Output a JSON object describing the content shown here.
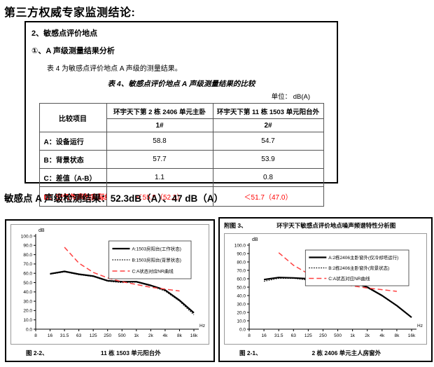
{
  "page": {
    "title": "第三方权威专家监测结论:"
  },
  "colors": {
    "accent_red": "#ff0000",
    "line_black": "#000000",
    "nr_curve_red": "#ff4040",
    "chart_frame_gray": "#999999"
  },
  "report_box": {
    "section_heading": "2、敏感点评价地点",
    "sub_heading": "①、A 声级测量结果分析",
    "intro_text": "表 4 为敏感点评价地点 A 声级的测量结果。",
    "table_title": "表 4、敏感点评价地点 A 声级测量结果的比较",
    "unit_label": "单位：  dB(A)",
    "table": {
      "corner_header": "比较项目",
      "col_groups": [
        "环宇天下第 2 栋 2406 单元主卧",
        "环宇天下第 11 栋 1503 单元阳台外"
      ],
      "sub_headers": [
        "1#",
        "2#"
      ],
      "rows": [
        {
          "label": "A：设备运行",
          "values": [
            "58.8",
            "54.7"
          ],
          "red": false
        },
        {
          "label": "B：背景状态",
          "values": [
            "57.7",
            "53.9"
          ],
          "red": false
        },
        {
          "label": "C：差值（A-B）",
          "values": [
            "1.1",
            "0.8"
          ],
          "red": false
        },
        {
          "label": "D：空气传声的实际结果",
          "values": [
            "＜55.8（52.3）",
            "＜51.7（47.0）"
          ],
          "red": true
        }
      ]
    }
  },
  "result_line": "敏感点 A 声级检测结果：52.3dB（A）、47 dB（A）",
  "chart_data": [
    {
      "type": "line",
      "position": "left",
      "figure_label": "图 2-2、",
      "figure_caption": "11 栋 1503 单元阳台外",
      "y_axis_unit": "dB",
      "x_axis_unit": "Hz",
      "ylim": [
        0,
        100
      ],
      "yticks": [
        "100.0",
        "90.0",
        "80.0",
        "70.0",
        "60.0",
        "50.0",
        "40.0",
        "30.0",
        "20.0",
        "10.0",
        "0.0"
      ],
      "x_categories": [
        "8",
        "16",
        "31.5",
        "63",
        "125",
        "250",
        "500",
        "1k",
        "2k",
        "4k",
        "8k",
        "16k"
      ],
      "grid": false,
      "legend_position": "top-right",
      "series": [
        {
          "name": "A:1503房阳台(工作状态)",
          "style": "solid",
          "color": "#000000",
          "values": [
            null,
            59.5,
            62,
            59,
            57,
            52,
            51,
            51,
            47,
            42,
            31,
            17.5
          ]
        },
        {
          "name": "B:1503房阳台(背景状态)",
          "style": "dotted",
          "color": "#000000",
          "values": [
            null,
            59,
            61.5,
            58.5,
            56.5,
            51.5,
            50,
            50.5,
            46.5,
            41,
            30,
            15.5
          ]
        },
        {
          "name": "C:A状态对应NR曲线",
          "style": "dashed",
          "color": "#ff4040",
          "values": [
            null,
            null,
            88,
            71,
            61,
            55,
            51,
            48,
            45,
            43,
            41,
            null
          ]
        }
      ]
    },
    {
      "type": "line",
      "position": "right",
      "header_label": "附图 3、",
      "header_title": "环宇天下敏感点评价地点噪声频谱特性分析图",
      "figure_label": "图 2-1、",
      "figure_caption": "2 栋 2406 单元主人房窗外",
      "y_axis_unit": "dB",
      "x_axis_unit": "Hz",
      "ylim": [
        0,
        100
      ],
      "yticks": [
        "100.0",
        "90.0",
        "80.0",
        "70.0",
        "60.0",
        "50.0",
        "40.0",
        "30.0",
        "20.0",
        "10.0",
        "0.0"
      ],
      "x_categories": [
        "8",
        "16",
        "31.5",
        "63",
        "125",
        "250",
        "500",
        "1k",
        "2k",
        "4k",
        "8k",
        "16k"
      ],
      "grid": false,
      "legend_position": "top-right",
      "series": [
        {
          "name": "A:2栋2406主卧窗外(仅冷却塔运行)",
          "style": "solid",
          "color": "#000000",
          "values": [
            null,
            59,
            61.5,
            61,
            60,
            57,
            53.5,
            56,
            50,
            40,
            28,
            14
          ]
        },
        {
          "name": "B:2栋2406主卧窗外(背景状态)",
          "style": "dotted",
          "color": "#000000",
          "values": [
            null,
            57,
            60.5,
            60.5,
            58.5,
            55.5,
            53,
            55.5,
            49.5,
            39.5,
            27.5,
            14
          ]
        },
        {
          "name": "C:A状态对应NR曲线",
          "style": "dashed",
          "color": "#ff4040",
          "values": [
            null,
            null,
            91,
            76,
            66,
            60,
            55,
            51.5,
            49,
            47,
            45,
            null
          ]
        }
      ]
    }
  ]
}
